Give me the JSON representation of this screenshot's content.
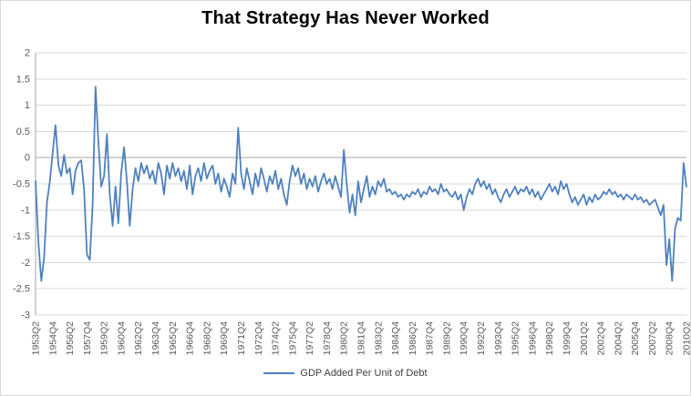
{
  "chart": {
    "title": "That Strategy Has Never Worked",
    "legend_label": "GDP Added Per Unit of Debt",
    "colors": {
      "line": "#4F81BD",
      "grid": "#D9D9D9",
      "axis": "#A6A6A6",
      "tick_text": "#595959",
      "title_text": "#000000",
      "border": "#D9D9D9"
    }
  },
  "chart_data": {
    "type": "line",
    "title": "That Strategy Has Never Worked",
    "xlabel": "",
    "ylabel": "",
    "ylim": [
      -3,
      2
    ],
    "y_ticks": [
      2,
      1.5,
      1,
      0.5,
      0,
      -0.5,
      -1,
      -1.5,
      -2,
      -2.5,
      -3
    ],
    "grid": "horizontal",
    "legend_position": "bottom",
    "tick_every": 6,
    "x_tick_labels": [
      "1953Q2",
      "1954Q4",
      "1956Q2",
      "1957Q4",
      "1959Q2",
      "1960Q4",
      "1962Q2",
      "1963Q4",
      "1965Q2",
      "1966Q4",
      "1968Q2",
      "1969Q4",
      "1971Q2",
      "1972Q4",
      "1974Q2",
      "1975Q4",
      "1977Q2",
      "1978Q4",
      "1980Q2",
      "1981Q4",
      "1983Q2",
      "1984Q4",
      "1986Q2",
      "1987Q4",
      "1989Q2",
      "1990Q4",
      "1992Q2",
      "1993Q4",
      "1995Q2",
      "1996Q4",
      "1998Q2",
      "1999Q4",
      "2001Q2",
      "2002Q4",
      "2004Q2",
      "2005Q4",
      "2007Q2",
      "2008Q4",
      "2010Q2"
    ],
    "series": [
      {
        "name": "GDP Added Per Unit of Debt",
        "values": [
          -0.45,
          -1.6,
          -2.35,
          -1.9,
          -0.85,
          -0.45,
          0.1,
          0.62,
          -0.15,
          -0.35,
          0.05,
          -0.3,
          -0.2,
          -0.7,
          -0.25,
          -0.1,
          -0.05,
          -0.6,
          -1.85,
          -1.95,
          -0.9,
          1.35,
          0.3,
          -0.55,
          -0.35,
          0.45,
          -0.7,
          -1.3,
          -0.55,
          -1.25,
          -0.3,
          0.2,
          -0.45,
          -1.3,
          -0.6,
          -0.2,
          -0.45,
          -0.1,
          -0.3,
          -0.15,
          -0.4,
          -0.25,
          -0.5,
          -0.1,
          -0.3,
          -0.7,
          -0.15,
          -0.4,
          -0.1,
          -0.35,
          -0.2,
          -0.45,
          -0.25,
          -0.6,
          -0.15,
          -0.7,
          -0.35,
          -0.2,
          -0.45,
          -0.1,
          -0.4,
          -0.25,
          -0.15,
          -0.5,
          -0.3,
          -0.65,
          -0.4,
          -0.55,
          -0.75,
          -0.3,
          -0.5,
          0.57,
          -0.3,
          -0.6,
          -0.2,
          -0.45,
          -0.7,
          -0.3,
          -0.55,
          -0.2,
          -0.4,
          -0.65,
          -0.35,
          -0.5,
          -0.25,
          -0.6,
          -0.4,
          -0.7,
          -0.9,
          -0.45,
          -0.15,
          -0.35,
          -0.2,
          -0.5,
          -0.3,
          -0.6,
          -0.4,
          -0.55,
          -0.35,
          -0.65,
          -0.45,
          -0.3,
          -0.5,
          -0.4,
          -0.6,
          -0.35,
          -0.55,
          -0.75,
          0.15,
          -0.5,
          -1.05,
          -0.7,
          -1.1,
          -0.45,
          -0.85,
          -0.6,
          -0.35,
          -0.75,
          -0.55,
          -0.7,
          -0.45,
          -0.55,
          -0.4,
          -0.65,
          -0.6,
          -0.7,
          -0.65,
          -0.75,
          -0.7,
          -0.8,
          -0.7,
          -0.75,
          -0.65,
          -0.7,
          -0.6,
          -0.75,
          -0.65,
          -0.7,
          -0.55,
          -0.65,
          -0.6,
          -0.7,
          -0.5,
          -0.65,
          -0.6,
          -0.7,
          -0.75,
          -0.65,
          -0.8,
          -0.7,
          -1.0,
          -0.75,
          -0.6,
          -0.7,
          -0.5,
          -0.4,
          -0.55,
          -0.45,
          -0.6,
          -0.5,
          -0.7,
          -0.6,
          -0.75,
          -0.85,
          -0.7,
          -0.6,
          -0.75,
          -0.65,
          -0.55,
          -0.7,
          -0.6,
          -0.65,
          -0.55,
          -0.7,
          -0.6,
          -0.75,
          -0.65,
          -0.8,
          -0.7,
          -0.6,
          -0.5,
          -0.65,
          -0.55,
          -0.7,
          -0.45,
          -0.6,
          -0.5,
          -0.7,
          -0.85,
          -0.75,
          -0.9,
          -0.8,
          -0.7,
          -0.9,
          -0.75,
          -0.85,
          -0.7,
          -0.8,
          -0.75,
          -0.65,
          -0.7,
          -0.6,
          -0.7,
          -0.65,
          -0.75,
          -0.7,
          -0.8,
          -0.7,
          -0.75,
          -0.8,
          -0.7,
          -0.8,
          -0.75,
          -0.85,
          -0.8,
          -0.9,
          -0.85,
          -0.8,
          -0.95,
          -1.1,
          -0.9,
          -2.05,
          -1.55,
          -2.35,
          -1.35,
          -1.15,
          -1.2,
          -0.1,
          -0.55
        ]
      }
    ]
  }
}
